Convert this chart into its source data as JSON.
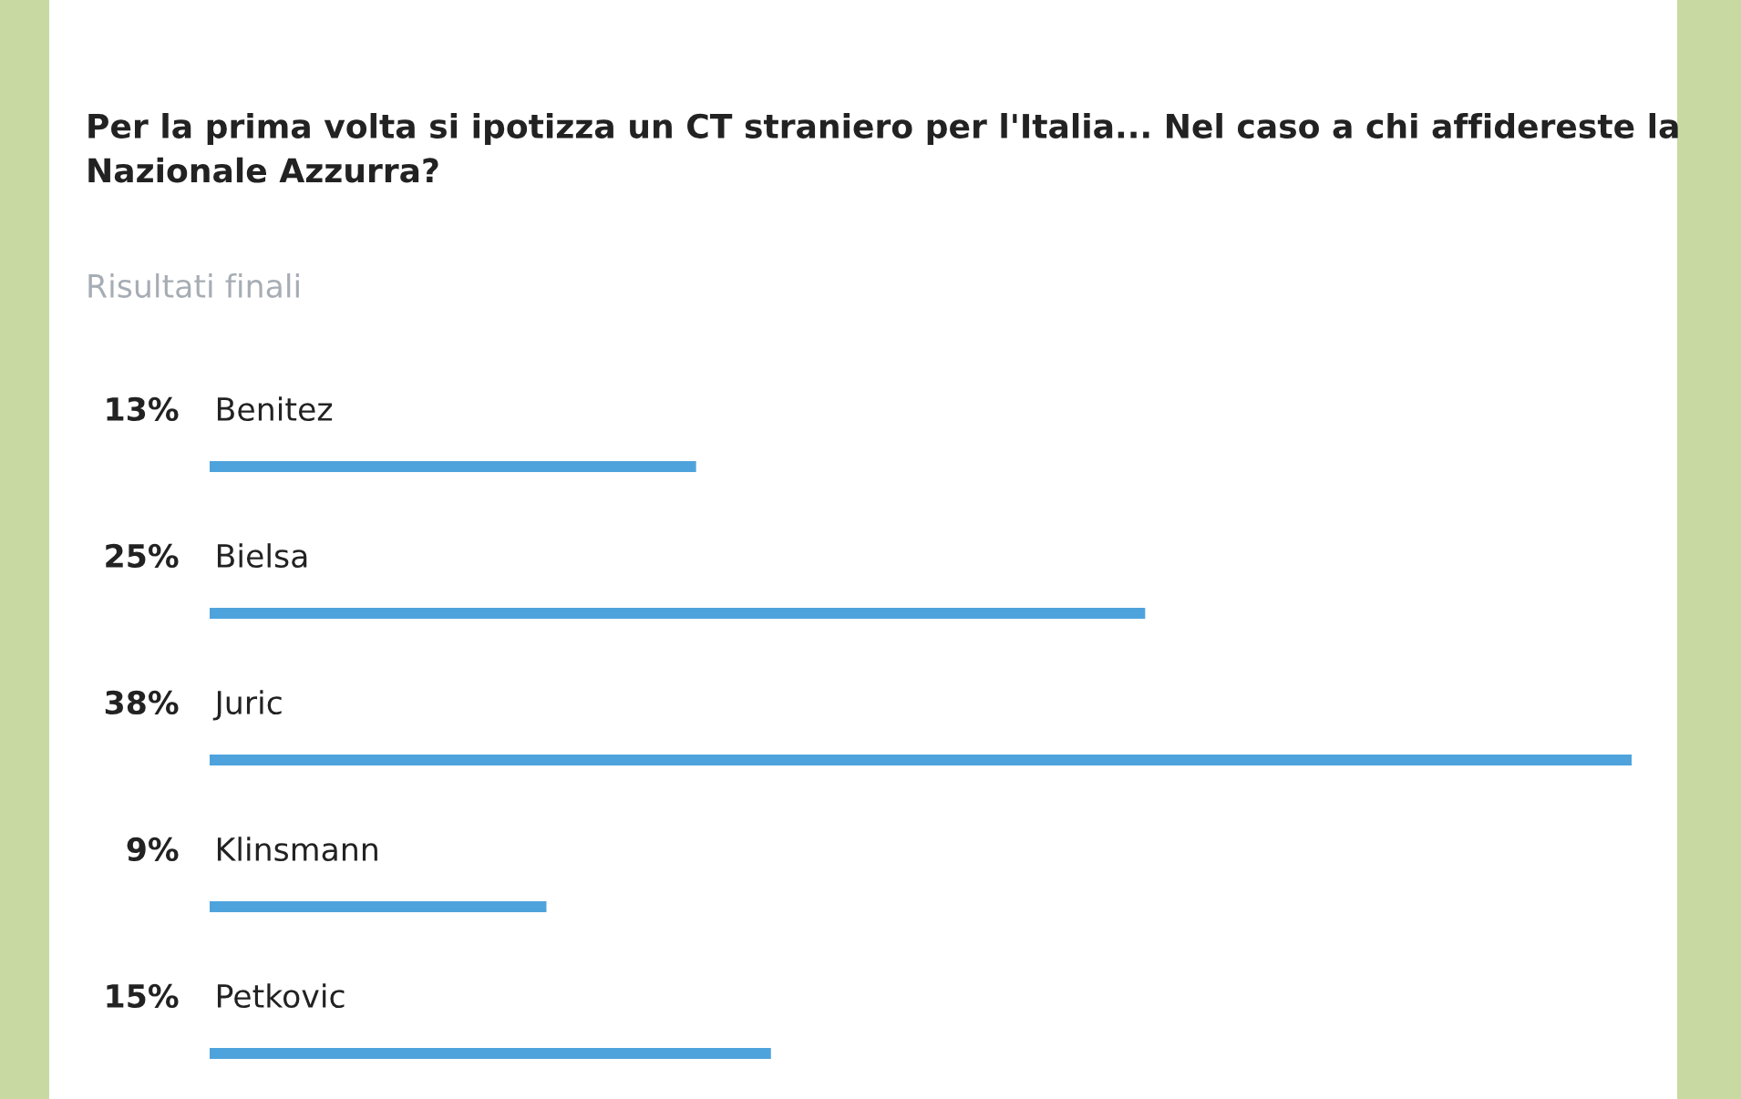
{
  "chart_data": {
    "type": "bar",
    "orientation": "horizontal",
    "title": "Per la prima volta si ipotizza un CT straniero per l'Italia... Nel caso a chi affidereste la Nazionale Azzurra?",
    "subtitle": "Risultati finali",
    "categories": [
      "Benitez",
      "Bielsa",
      "Juric",
      "Klinsmann",
      "Petkovic"
    ],
    "values": [
      13,
      25,
      38,
      9,
      15
    ],
    "value_labels": [
      "13%",
      "25%",
      "38%",
      "9%",
      "15%"
    ],
    "color": "#4fa3dc"
  }
}
